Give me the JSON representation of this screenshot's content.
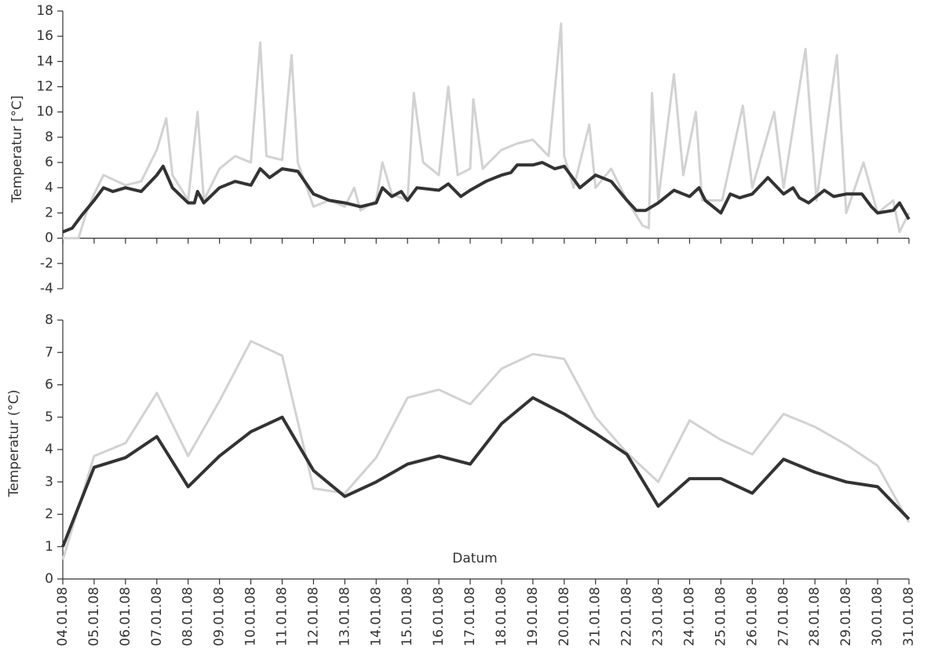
{
  "chart_data": [
    {
      "type": "line",
      "ylabel": "Temperatur [°C]",
      "ylim": [
        -4,
        18
      ],
      "yticks": [
        -4,
        -2,
        0,
        2,
        4,
        6,
        8,
        10,
        12,
        14,
        16,
        18
      ],
      "xlim": [
        0,
        27
      ],
      "xticks": [
        0,
        1,
        2,
        3,
        4,
        5,
        6,
        7,
        8,
        9,
        10,
        11,
        12,
        13,
        14,
        15,
        16,
        17,
        18,
        19,
        20,
        21,
        22,
        23,
        24,
        25,
        26,
        27
      ],
      "series": [
        {
          "color": "#d2d2d2",
          "x": [
            0,
            0.5,
            0.75,
            1,
            1.3,
            2,
            2.5,
            3,
            3.3,
            3.5,
            4,
            4.3,
            4.5,
            5,
            5.5,
            6,
            6.3,
            6.5,
            7,
            7.3,
            7.5,
            8,
            8.5,
            9,
            9.3,
            9.5,
            10,
            10.2,
            10.5,
            11,
            11.2,
            11.5,
            12,
            12.3,
            12.6,
            13,
            13.1,
            13.4,
            14,
            14.5,
            15,
            15.5,
            15.9,
            16,
            16.3,
            16.8,
            17,
            17.5,
            18,
            18.5,
            18.7,
            18.8,
            19,
            19.5,
            19.8,
            20.2,
            20.4,
            21.04,
            21.7,
            22,
            22.7,
            23,
            23.7,
            24.05,
            24.7,
            25,
            25.55,
            26,
            26.5,
            26.7,
            27
          ],
          "values": [
            0,
            0,
            2,
            3.5,
            5,
            4.2,
            4.5,
            7,
            9.5,
            5,
            3,
            10,
            3,
            5.5,
            6.5,
            6,
            15.5,
            6.5,
            6.2,
            14.5,
            6,
            2.5,
            3,
            2.5,
            4,
            2.2,
            3,
            6,
            3.5,
            3,
            11.5,
            6,
            5,
            12,
            5,
            5.5,
            11,
            5.5,
            7,
            7.5,
            7.8,
            6.5,
            17,
            6.5,
            4,
            9,
            4,
            5.5,
            3,
            1,
            0.8,
            11.5,
            3,
            13,
            5,
            10,
            3,
            3,
            10.5,
            4,
            10,
            4,
            15,
            3,
            14.5,
            2,
            6,
            2,
            3,
            0.5,
            2
          ]
        },
        {
          "color": "#333333",
          "x": [
            0,
            0.3,
            0.6,
            1,
            1.3,
            1.6,
            2,
            2.5,
            3,
            3.2,
            3.5,
            4,
            4.2,
            4.3,
            4.5,
            5,
            5.5,
            6,
            6.3,
            6.6,
            7,
            7.5,
            8,
            8.5,
            9,
            9.5,
            10,
            10.2,
            10.5,
            10.8,
            11,
            11.3,
            12,
            12.3,
            12.7,
            13,
            13.5,
            14,
            14.3,
            14.5,
            15,
            15.3,
            15.7,
            16,
            16.5,
            17,
            17.5,
            18,
            18.3,
            18.6,
            19,
            19.5,
            19.8,
            20,
            20.3,
            20.5,
            21,
            21.3,
            21.6,
            22,
            22.5,
            23,
            23.3,
            23.5,
            23.8,
            24.3,
            24.6,
            25,
            25.5,
            25.8,
            26,
            26.5,
            26.7,
            27
          ],
          "values": [
            0.5,
            0.8,
            1.8,
            3,
            4,
            3.7,
            4,
            3.7,
            5,
            5.7,
            4,
            2.8,
            2.8,
            3.7,
            2.8,
            4,
            4.5,
            4.2,
            5.5,
            4.8,
            5.5,
            5.3,
            3.5,
            3,
            2.8,
            2.5,
            2.8,
            4,
            3.3,
            3.7,
            3,
            4,
            3.8,
            4.3,
            3.3,
            3.8,
            4.5,
            5,
            5.2,
            5.8,
            5.8,
            6,
            5.5,
            5.7,
            4,
            5,
            4.5,
            3,
            2.2,
            2.2,
            2.8,
            3.8,
            3.5,
            3.3,
            4,
            3,
            2,
            3.5,
            3.2,
            3.5,
            4.8,
            3.5,
            4,
            3.2,
            2.8,
            3.8,
            3.3,
            3.5,
            3.5,
            2.5,
            2,
            2.2,
            2.8,
            1.5
          ]
        }
      ]
    },
    {
      "type": "line",
      "xlabel": "Datum",
      "ylabel": "Temperatur (°C)",
      "ylim": [
        0,
        8
      ],
      "yticks": [
        0,
        1,
        2,
        3,
        4,
        5,
        6,
        7,
        8
      ],
      "categories": [
        "04.01.08",
        "05.01.08",
        "06.01.08",
        "07.01.08",
        "08.01.08",
        "09.01.08",
        "10.01.08",
        "11.01.08",
        "12.01.08",
        "13.01.08",
        "14.01.08",
        "15.01.08",
        "16.01.08",
        "17.01.08",
        "18.01.08",
        "19.01.08",
        "20.01.08",
        "21.01.08",
        "22.01.08",
        "23.01.08",
        "24.01.08",
        "25.01.08",
        "26.01.08",
        "27.01.08",
        "28.01.08",
        "29.01.08",
        "30.01.08",
        "31.01.08"
      ],
      "series": [
        {
          "color": "#d2d2d2",
          "values": [
            0.6,
            3.8,
            4.2,
            5.75,
            3.8,
            5.5,
            7.35,
            6.9,
            2.8,
            2.65,
            3.75,
            5.6,
            5.85,
            5.4,
            6.5,
            6.95,
            6.8,
            5.0,
            3.9,
            3.0,
            4.9,
            4.3,
            3.85,
            5.1,
            4.7,
            4.15,
            3.5,
            1.75
          ]
        },
        {
          "color": "#333333",
          "values": [
            1.0,
            3.45,
            3.75,
            4.4,
            2.85,
            3.8,
            4.55,
            5.0,
            3.35,
            2.55,
            3.0,
            3.55,
            3.8,
            3.55,
            4.8,
            5.6,
            5.1,
            4.5,
            3.85,
            2.25,
            3.1,
            3.1,
            2.65,
            3.7,
            3.3,
            3.0,
            2.85,
            1.85
          ]
        }
      ]
    }
  ]
}
